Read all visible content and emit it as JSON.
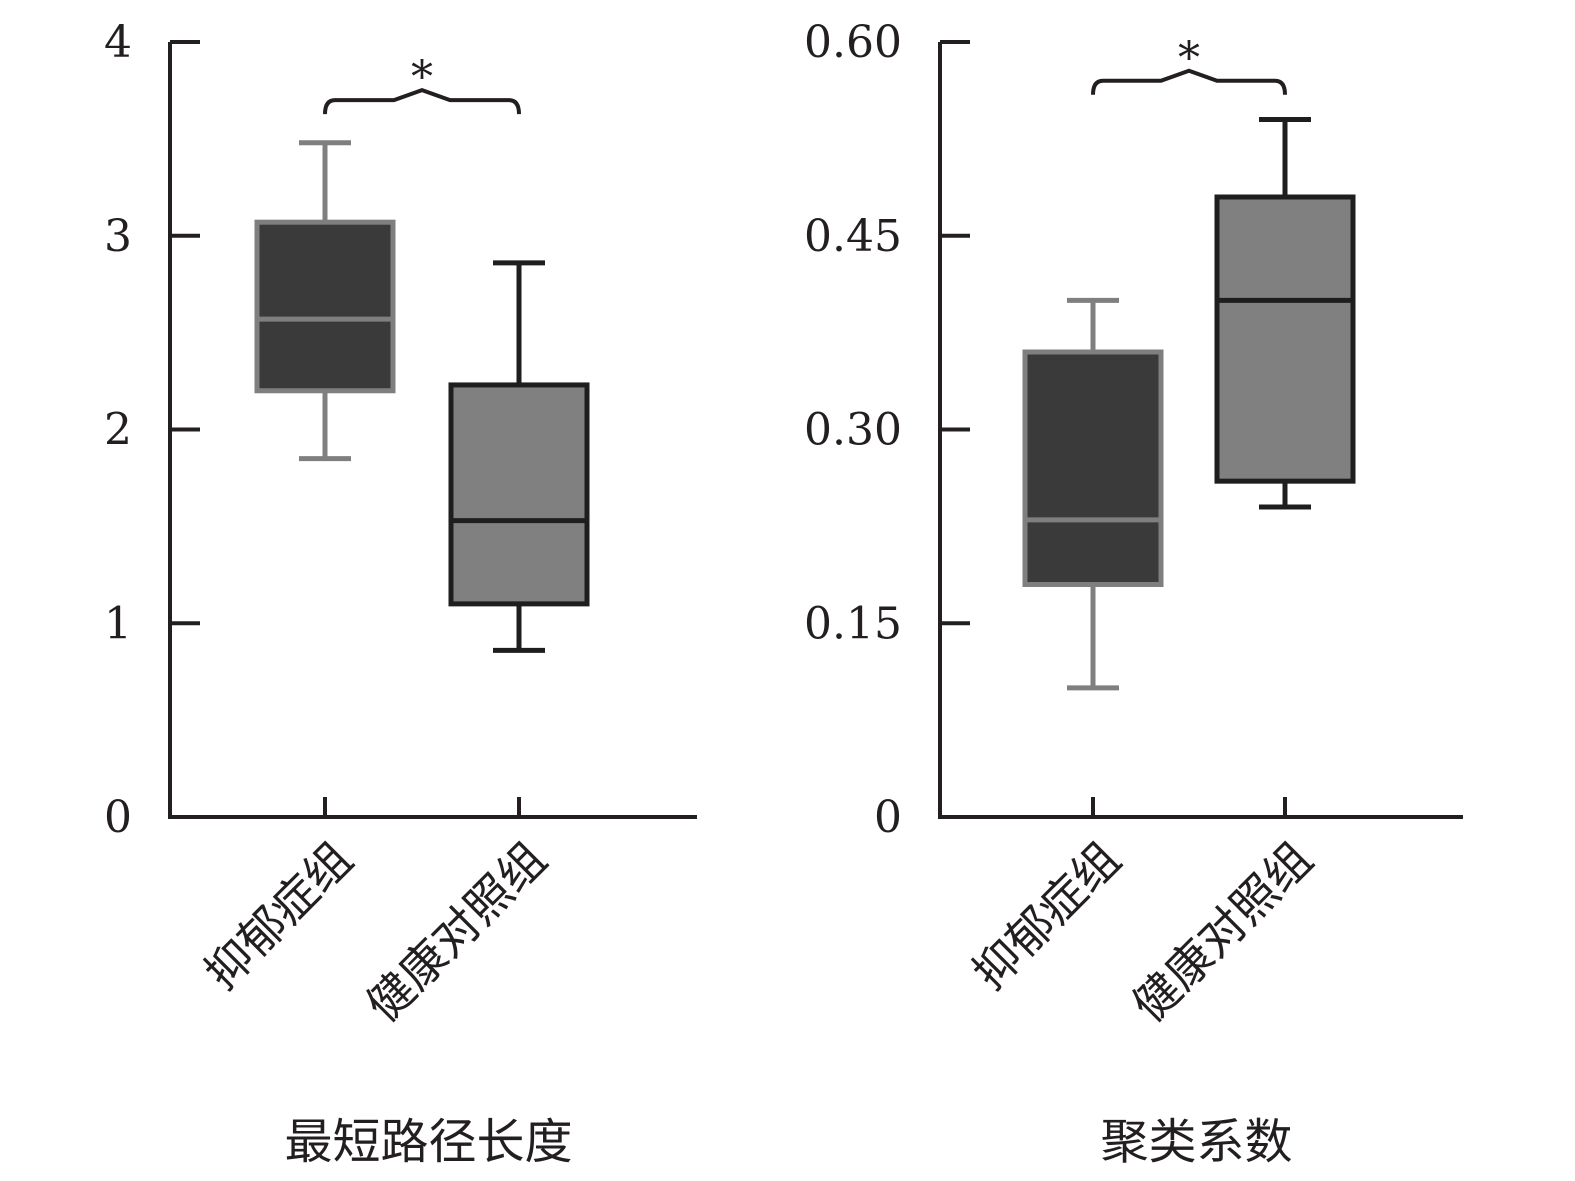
{
  "colors": {
    "axis": "#231f20",
    "depression_fill": "#3a3a3a",
    "depression_line": "#7f7f7f",
    "control_fill": "#808080",
    "control_line": "#1e1e1e"
  },
  "chart_data": [
    {
      "type": "box",
      "title": "最短路径长度",
      "xlabel": "最短路径长度",
      "ylabel": "",
      "ylim": [
        0,
        4
      ],
      "yticks": [
        0,
        1,
        2,
        3,
        4
      ],
      "ytick_labels": [
        "0",
        "1",
        "2",
        "3",
        "4"
      ],
      "categories": [
        "抑郁症组",
        "健康对照组"
      ],
      "series": [
        {
          "category": "抑郁症组",
          "min": 1.85,
          "q1": 2.2,
          "median": 2.57,
          "q3": 3.07,
          "max": 3.48,
          "style": "depression"
        },
        {
          "category": "健康对照组",
          "min": 0.86,
          "q1": 1.1,
          "median": 1.53,
          "q3": 2.23,
          "max": 2.86,
          "style": "control"
        }
      ],
      "significance": {
        "label": "*",
        "pair": [
          "抑郁症组",
          "健康对照组"
        ],
        "y": 3.7
      }
    },
    {
      "type": "box",
      "title": "聚类系数",
      "xlabel": "聚类系数",
      "ylabel": "",
      "ylim": [
        0,
        0.6
      ],
      "yticks": [
        0,
        0.15,
        0.3,
        0.45,
        0.6
      ],
      "ytick_labels": [
        "0",
        "0.15",
        "0.30",
        "0.45",
        "0.60"
      ],
      "categories": [
        "抑郁症组",
        "健康对照组"
      ],
      "series": [
        {
          "category": "抑郁症组",
          "min": 0.1,
          "q1": 0.18,
          "median": 0.23,
          "q3": 0.36,
          "max": 0.4,
          "style": "depression"
        },
        {
          "category": "健康对照组",
          "min": 0.24,
          "q1": 0.26,
          "median": 0.4,
          "q3": 0.48,
          "max": 0.54,
          "style": "control"
        }
      ],
      "significance": {
        "label": "*",
        "pair": [
          "抑郁症组",
          "健康对照组"
        ],
        "y": 0.57
      }
    }
  ]
}
